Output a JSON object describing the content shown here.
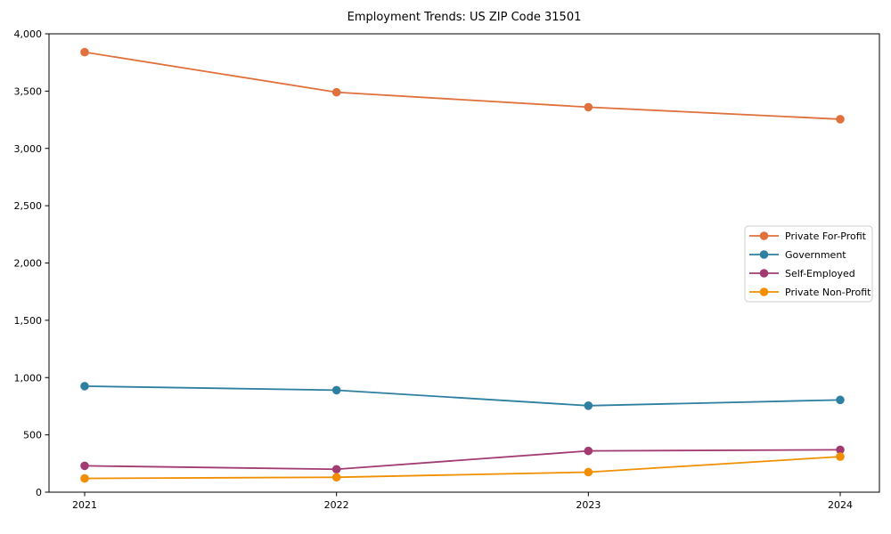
{
  "chart_data": {
    "type": "line",
    "title": "Employment Trends: US ZIP Code 31501",
    "xlabel": "",
    "ylabel": "",
    "x": [
      "2021",
      "2022",
      "2023",
      "2024"
    ],
    "series": [
      {
        "name": "Private For-Profit",
        "color": "#E0703C",
        "values": [
          3840,
          3490,
          3360,
          3255
        ]
      },
      {
        "name": "Government",
        "color": "#2E7FA0",
        "values": [
          925,
          890,
          755,
          805
        ]
      },
      {
        "name": "Self-Employed",
        "color": "#A23B72",
        "values": [
          230,
          200,
          360,
          370
        ]
      },
      {
        "name": "Private Non-Profit",
        "color": "#F18F01",
        "values": [
          120,
          130,
          175,
          310
        ]
      }
    ],
    "ylim": [
      0,
      4000
    ],
    "yticks": [
      0,
      500,
      1000,
      1500,
      2000,
      2500,
      3000,
      3500,
      4000
    ],
    "ytick_labels": [
      "0",
      "500",
      "1,000",
      "1,500",
      "2,000",
      "2,500",
      "3,000",
      "3,500",
      "4,000"
    ],
    "grid": false,
    "marker": "circle",
    "legend_position": "center right",
    "frame_color": "#000000",
    "legend_border_color": "#cccccc",
    "background_color": "#ffffff"
  }
}
